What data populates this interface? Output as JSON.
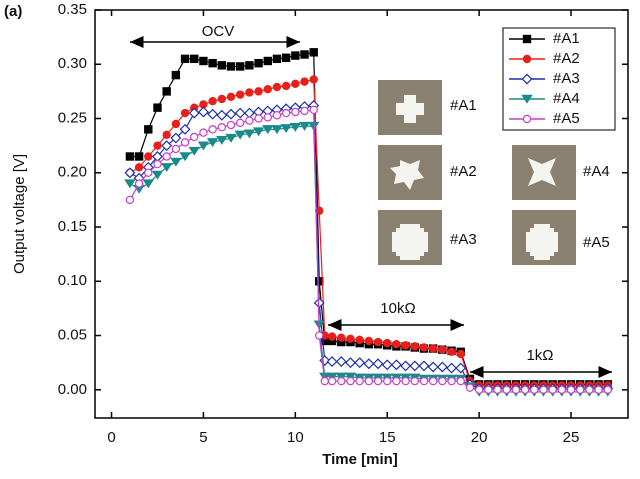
{
  "chart_data": {
    "type": "line",
    "panel_label": "(a)",
    "xlabel": "Time [min]",
    "ylabel": "Output voltage [V]",
    "xlim": [
      -0.9,
      28.1
    ],
    "ylim": [
      -0.026,
      0.35
    ],
    "xticks": [
      0,
      5,
      10,
      15,
      20,
      25
    ],
    "yticks": [
      {
        "value": 0,
        "label": "0.00"
      },
      0.05,
      {
        "value": 0.1,
        "label": "0.10"
      },
      0.15,
      {
        "value": 0.2,
        "label": "0.20"
      },
      0.25,
      {
        "value": 0.3,
        "label": "0.30"
      },
      0.35
    ],
    "legend": "upper right",
    "annotations": [
      "OCV",
      "10kΩ",
      "1kΩ"
    ],
    "inset_labels": [
      "#A1",
      "#A2",
      "#A3",
      "#A4",
      "#A5"
    ],
    "x": [
      1,
      1.5,
      2,
      2.5,
      3,
      3.5,
      4,
      4.5,
      5,
      5.5,
      6,
      6.5,
      7,
      7.5,
      8,
      8.5,
      9,
      9.5,
      10,
      10.5,
      11,
      11.3,
      11.6,
      12,
      12.5,
      13,
      13.5,
      14,
      14.5,
      15,
      15.5,
      16,
      16.5,
      17,
      17.5,
      18,
      18.5,
      19,
      19.5,
      20,
      20.5,
      21,
      21.5,
      22,
      22.5,
      23,
      23.5,
      24,
      24.5,
      25,
      25.5,
      26,
      26.5,
      27
    ],
    "series": [
      {
        "name": "#A1",
        "color": "#000000",
        "marker": "square",
        "values": [
          0.215,
          0.215,
          0.24,
          0.26,
          0.275,
          0.29,
          0.305,
          0.305,
          0.303,
          0.301,
          0.299,
          0.298,
          0.298,
          0.299,
          0.301,
          0.303,
          0.305,
          0.306,
          0.308,
          0.309,
          0.311,
          0.1,
          0.045,
          0.045,
          0.044,
          0.044,
          0.043,
          0.042,
          0.042,
          0.041,
          0.04,
          0.04,
          0.039,
          0.038,
          0.038,
          0.037,
          0.036,
          0.035,
          0.01,
          0.005,
          0.005,
          0.005,
          0.005,
          0.005,
          0.005,
          0.005,
          0.005,
          0.005,
          0.005,
          0.005,
          0.005,
          0.005,
          0.005,
          0.005
        ]
      },
      {
        "name": "#A2",
        "color": "#e8201c",
        "marker": "circle",
        "values": [
          0.2,
          0.205,
          0.215,
          0.225,
          0.235,
          0.245,
          0.255,
          0.26,
          0.263,
          0.266,
          0.268,
          0.27,
          0.272,
          0.274,
          0.275,
          0.277,
          0.279,
          0.28,
          0.282,
          0.284,
          0.286,
          0.165,
          0.05,
          0.049,
          0.048,
          0.047,
          0.046,
          0.045,
          0.044,
          0.043,
          0.042,
          0.041,
          0.04,
          0.039,
          0.038,
          0.037,
          0.035,
          0.033,
          0.008,
          0.004,
          0.004,
          0.004,
          0.004,
          0.004,
          0.004,
          0.004,
          0.004,
          0.004,
          0.004,
          0.004,
          0.004,
          0.004,
          0.004,
          0.004
        ]
      },
      {
        "name": "#A3",
        "color": "#1f2fa8",
        "marker": "diamond-open",
        "values": [
          0.2,
          0.195,
          0.205,
          0.215,
          0.225,
          0.232,
          0.24,
          0.255,
          0.256,
          0.254,
          0.253,
          0.254,
          0.255,
          0.255,
          0.256,
          0.257,
          0.258,
          0.259,
          0.26,
          0.261,
          0.262,
          0.08,
          0.027,
          0.026,
          0.026,
          0.025,
          0.025,
          0.024,
          0.024,
          0.023,
          0.023,
          0.022,
          0.022,
          0.022,
          0.021,
          0.021,
          0.02,
          0.02,
          0.005,
          0.001,
          0.001,
          0.001,
          0.001,
          0.001,
          0.001,
          0.001,
          0.001,
          0.001,
          0.001,
          0.001,
          0.001,
          0.001,
          0.001,
          0.001
        ]
      },
      {
        "name": "#A4",
        "color": "#1a8a8a",
        "marker": "triangle-down",
        "values": [
          0.19,
          0.185,
          0.19,
          0.198,
          0.205,
          0.21,
          0.215,
          0.22,
          0.225,
          0.228,
          0.23,
          0.232,
          0.235,
          0.236,
          0.238,
          0.24,
          0.24,
          0.241,
          0.242,
          0.243,
          0.243,
          0.06,
          0.012,
          0.012,
          0.012,
          0.012,
          0.011,
          0.011,
          0.011,
          0.011,
          0.011,
          0.011,
          0.011,
          0.01,
          0.01,
          0.01,
          0.01,
          0.01,
          0.003,
          -0.002,
          -0.002,
          -0.002,
          -0.002,
          -0.002,
          -0.002,
          -0.002,
          -0.002,
          -0.002,
          -0.002,
          -0.002,
          -0.002,
          -0.002,
          -0.002,
          -0.002
        ]
      },
      {
        "name": "#A5",
        "color": "#c83cc8",
        "marker": "circle-open",
        "values": [
          0.175,
          0.19,
          0.2,
          0.208,
          0.215,
          0.222,
          0.228,
          0.233,
          0.237,
          0.24,
          0.242,
          0.244,
          0.246,
          0.248,
          0.25,
          0.251,
          0.253,
          0.255,
          0.256,
          0.257,
          0.258,
          0.05,
          0.008,
          0.008,
          0.008,
          0.008,
          0.008,
          0.008,
          0.008,
          0.008,
          0.008,
          0.008,
          0.008,
          0.008,
          0.008,
          0.008,
          0.008,
          0.008,
          0.002,
          0,
          0,
          0,
          0,
          0,
          0,
          0,
          0,
          0,
          0,
          0,
          0,
          0,
          0,
          0
        ]
      }
    ]
  }
}
